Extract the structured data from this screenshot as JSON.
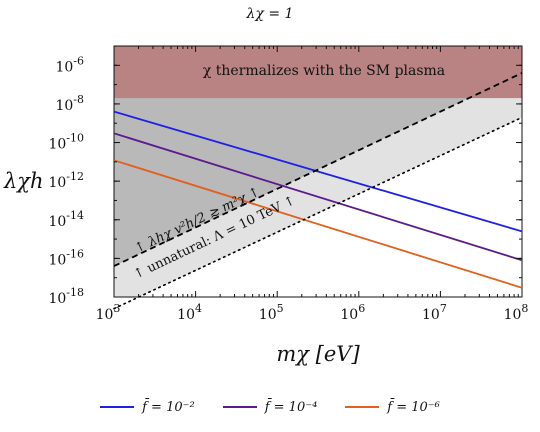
{
  "chart_data": {
    "type": "line",
    "title": "λ_χ = 1",
    "xlabel": "m_χ [eV]",
    "ylabel": "λ_χh",
    "x_scale": "log",
    "y_scale": "log",
    "xlim": [
      1000,
      100000000
    ],
    "ylim": [
      1e-18,
      1e-05
    ],
    "x_ticks": [
      "10^3",
      "10^4",
      "10^5",
      "10^6",
      "10^7",
      "10^8"
    ],
    "x_tick_values": [
      1000,
      10000,
      100000,
      1000000,
      10000000,
      100000000
    ],
    "y_ticks": [
      "10^-6",
      "10^-8",
      "10^-10",
      "10^-12",
      "10^-14",
      "10^-16",
      "10^-18"
    ],
    "y_tick_values": [
      1e-06,
      1e-08,
      1e-10,
      1e-12,
      1e-14,
      1e-16,
      1e-18
    ],
    "series": [
      {
        "name": "f̄ = 10^-2",
        "color": "#1f1fe6",
        "x": [
          1000,
          100000000
        ],
        "y": [
          4e-09,
          2.5e-15
        ]
      },
      {
        "name": "f̄ = 10^-4",
        "color": "#5b1a8e",
        "x": [
          1000,
          100000000
        ],
        "y": [
          3e-10,
          8e-17
        ]
      },
      {
        "name": "f̄ = 10^-6",
        "color": "#e0611f",
        "x": [
          1000,
          100000000
        ],
        "y": [
          1.2e-11,
          3e-18
        ]
      }
    ],
    "boundaries": [
      {
        "label": "↑ λ_hχ v_h²/2 ≳ m_χ² ↑",
        "style": "dashed",
        "color": "#000000",
        "x": [
          1000,
          100000000
        ],
        "y": [
          4e-17,
          4e-07
        ]
      },
      {
        "label": "↑ unnatural: Λ = 10 TeV ↑",
        "style": "dotted",
        "color": "#000000",
        "x": [
          1000,
          100000000
        ],
        "y": [
          2.5e-19,
          2e-09
        ]
      }
    ],
    "regions": [
      {
        "label": "χ thermalizes with the SM plasma",
        "color": "#b98383",
        "y_min": 2e-08,
        "y_max": 1e-05
      },
      {
        "label": "",
        "color": "#b9b9b9",
        "note": "above dashed boundary"
      },
      {
        "label": "",
        "color": "#e2e2e2",
        "note": "between dashed and dotted boundaries"
      }
    ],
    "legend_position": "bottom"
  },
  "legend": {
    "items": [
      {
        "label": "f̄ = 10⁻²",
        "color": "#1f1fe6"
      },
      {
        "label": "f̄ = 10⁻⁴",
        "color": "#5b1a8e"
      },
      {
        "label": "f̄ = 10⁻⁶",
        "color": "#e0611f"
      }
    ]
  },
  "labels": {
    "title": "λχ = 1",
    "thermal": "χ thermalizes with the SM plasma",
    "dashed": "↑ λhχ v²h/2 ≳ m²χ ↑",
    "dotted": "↑ unnatural: Λ = 10 TeV ↑",
    "xlabel": "mχ [eV]",
    "ylabel": "λχh"
  }
}
